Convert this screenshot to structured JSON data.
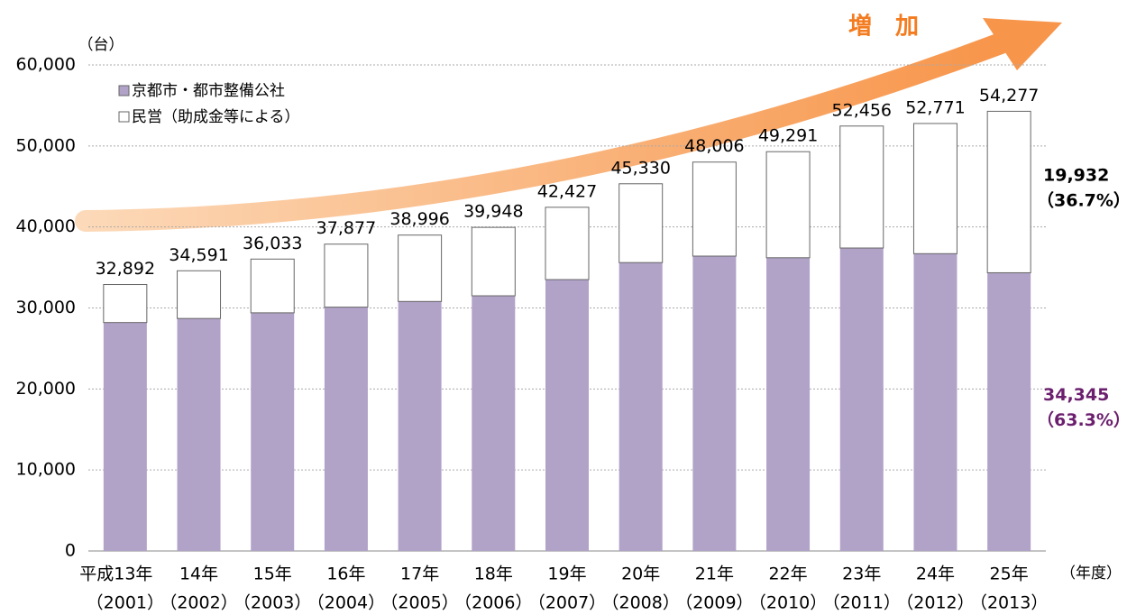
{
  "chart_data": {
    "type": "stacked-bar",
    "annotation": "増　加",
    "y_unit": "（台）",
    "x_unit": "（年度）",
    "categories": [
      "平成13年",
      "14年",
      "15年",
      "16年",
      "17年",
      "18年",
      "19年",
      "20年",
      "21年",
      "22年",
      "23年",
      "24年",
      "25年"
    ],
    "categories_sub": [
      "（2001）",
      "（2002）",
      "（2003）",
      "（2004）",
      "（2005）",
      "（2006）",
      "（2007）",
      "（2008）",
      "（2009）",
      "（2010）",
      "（2011）",
      "（2012）",
      "（2013）"
    ],
    "series": [
      {
        "name": "京都市・都市整備公社",
        "color": "#b1a2c8",
        "label_color": "#6b1f6e",
        "values": [
          28200,
          28700,
          29400,
          30100,
          30800,
          31500,
          33500,
          35600,
          36400,
          36200,
          37400,
          36700,
          34345
        ],
        "value_labels": [
          null,
          null,
          null,
          null,
          null,
          null,
          null,
          null,
          null,
          null,
          null,
          null,
          "34,345"
        ],
        "share_labels": [
          null,
          null,
          null,
          null,
          null,
          null,
          null,
          null,
          null,
          null,
          null,
          null,
          "（63.3%）"
        ]
      },
      {
        "name": "民営（助成金等による）",
        "color": "#ffffff",
        "label_color": "#000000",
        "values": [
          4692,
          5891,
          6633,
          7777,
          8196,
          8448,
          8927,
          9730,
          11606,
          13091,
          15056,
          16071,
          19932
        ],
        "value_labels": [
          null,
          null,
          null,
          null,
          null,
          null,
          null,
          null,
          null,
          null,
          null,
          null,
          "19,932"
        ],
        "share_labels": [
          null,
          null,
          null,
          null,
          null,
          null,
          null,
          null,
          null,
          null,
          null,
          null,
          "（36.7%）"
        ]
      }
    ],
    "totals": [
      32892,
      34591,
      36033,
      37877,
      38996,
      39948,
      42427,
      45330,
      48006,
      49291,
      52456,
      52771,
      54277
    ],
    "total_labels": [
      "32,892",
      "34,591",
      "36,033",
      "37,877",
      "38,996",
      "39,948",
      "42,427",
      "45,330",
      "48,006",
      "49,291",
      "52,456",
      "52,771",
      "54,277"
    ],
    "ylim": [
      0,
      60000
    ],
    "yticks": [
      0,
      {
        "value": 10000,
        "label": "10,000"
      },
      {
        "value": 20000,
        "label": "20,000"
      },
      {
        "value": 30000,
        "label": "30,000"
      },
      {
        "value": 40000,
        "label": "40,000"
      },
      {
        "value": 50000,
        "label": "50,000"
      },
      {
        "value": 60000,
        "label": "60,000"
      }
    ],
    "grid": true,
    "legend": "upper left"
  }
}
